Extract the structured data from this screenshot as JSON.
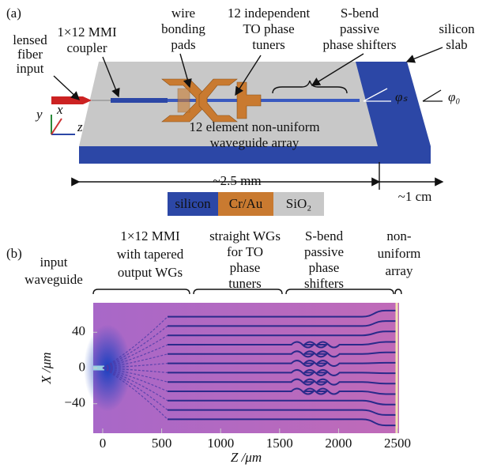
{
  "panel_a": {
    "label": "(a)",
    "annotations": [
      {
        "lines": [
          "lensed",
          "fiber",
          "input"
        ]
      },
      {
        "lines": [
          "1×12 MMI",
          "coupler"
        ]
      },
      {
        "lines": [
          "wire",
          "bonding",
          "pads"
        ]
      },
      {
        "lines": [
          "12 independent",
          "TO phase",
          "tuners"
        ]
      },
      {
        "lines": [
          "S-bend",
          "passive",
          "phase shifters"
        ]
      },
      {
        "lines": [
          "silicon",
          "slab"
        ]
      },
      {
        "lines": [
          "12 element non-uniform",
          "waveguide array"
        ]
      }
    ],
    "axes": [
      "y",
      "x",
      "z"
    ],
    "angles": [
      "φₛ",
      "φ₀"
    ],
    "dimensions": [
      "~2.5 mm",
      "~1 cm"
    ],
    "legend": [
      {
        "name": "silicon",
        "color": "#2c47a6"
      },
      {
        "name": "Cr/Au",
        "color": "#c97a30"
      },
      {
        "name": "SiO₂",
        "color": "#c8c8c8"
      }
    ]
  },
  "panel_b": {
    "label": "(b)",
    "sections": [
      {
        "lines": [
          "input",
          "waveguide"
        ]
      },
      {
        "lines": [
          "1×12 MMI",
          "with tapered",
          "output WGs"
        ]
      },
      {
        "lines": [
          "straight WGs",
          "for TO",
          "phase",
          "tuners"
        ]
      },
      {
        "lines": [
          "S-bend",
          "passive",
          "phase",
          "shifters"
        ]
      },
      {
        "lines": [
          "non-",
          "uniform",
          "array"
        ]
      }
    ],
    "xlabel": "Z /μm",
    "ylabel": "X /μm",
    "xlim": [
      -80,
      2513
    ],
    "ylim": [
      -73,
      73
    ],
    "xticks": [
      0,
      500,
      1000,
      1500,
      2000,
      2500
    ],
    "yticks": [
      40,
      0,
      {
        "value": -40,
        "label": "−40"
      }
    ]
  }
}
